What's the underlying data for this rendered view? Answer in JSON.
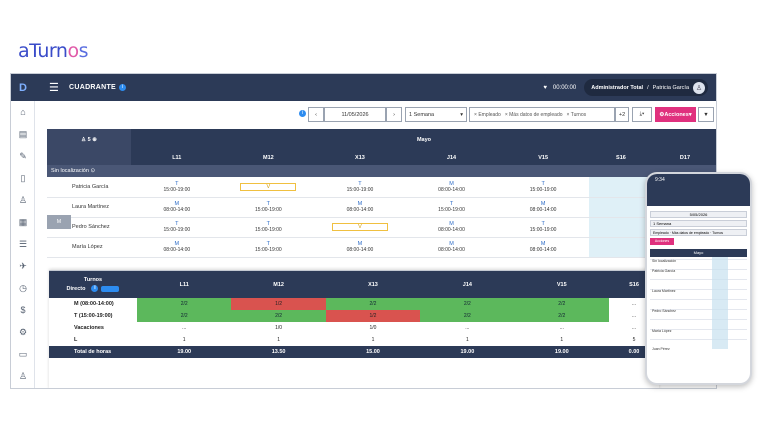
{
  "logo": {
    "text_a": "aTurn",
    "text_o": "o",
    "text_s": "s"
  },
  "topbar": {
    "title": "CUADRANTE",
    "timer": "00:00:00",
    "user_role": "Administrador Total",
    "user_name": "Patricia García"
  },
  "controls": {
    "date": "11/05/2026",
    "range": "1 Semana",
    "filter_chips": [
      "Empleado",
      "Más datos de empleado",
      "Turnos"
    ],
    "more_filters": "+2",
    "actions_label": "Acciones"
  },
  "grid": {
    "counter": "5",
    "month": "Mayo",
    "days": [
      "L11",
      "M12",
      "X13",
      "J14",
      "V15",
      "S16",
      "D17"
    ],
    "location_label": "Sin localización",
    "employees": [
      {
        "name": "Patricia García",
        "shifts": [
          {
            "c": "T",
            "h": "15:00-19:00"
          },
          {
            "c": "V",
            "h": ""
          },
          {
            "c": "T",
            "h": "15:00-19:00"
          },
          {
            "c": "M",
            "h": "08:00-14:00"
          },
          {
            "c": "T",
            "h": "15:00-19:00"
          }
        ]
      },
      {
        "name": "Laura Martínez",
        "shifts": [
          {
            "c": "M",
            "h": "08:00-14:00"
          },
          {
            "c": "T",
            "h": "15:00-19:00"
          },
          {
            "c": "M",
            "h": "08:00-14:00"
          },
          {
            "c": "T",
            "h": "15:00-19:00"
          },
          {
            "c": "M",
            "h": "08:00-14:00"
          }
        ]
      },
      {
        "name": "Pedro Sánchez",
        "shifts": [
          {
            "c": "T",
            "h": "15:00-19:00"
          },
          {
            "c": "T",
            "h": "15:00-19:00"
          },
          {
            "c": "V",
            "h": ""
          },
          {
            "c": "M",
            "h": "08:00-14:00"
          },
          {
            "c": "T",
            "h": "15:00-19:00"
          }
        ]
      },
      {
        "name": "María López",
        "shifts": [
          {
            "c": "M",
            "h": "08:00-14:00"
          },
          {
            "c": "T",
            "h": "15:00-19:00"
          },
          {
            "c": "M",
            "h": "08:00-14:00"
          },
          {
            "c": "M",
            "h": "08:00-14:00"
          },
          {
            "c": "M",
            "h": "08:00-14:00"
          }
        ]
      }
    ],
    "side_marker": "M"
  },
  "summary": {
    "header_label": "Turnos",
    "subheader_label": "Directo",
    "days": [
      "L11",
      "M12",
      "X13",
      "J14",
      "V15",
      "S16"
    ],
    "rows": [
      {
        "label": "M (08:00-14:00)",
        "values": [
          "2/2",
          "1/2",
          "2/2",
          "2/2",
          "2/2",
          "..."
        ],
        "status": [
          "g",
          "r",
          "g",
          "g",
          "g",
          ""
        ]
      },
      {
        "label": "T (15:00-19:00)",
        "values": [
          "2/2",
          "2/2",
          "1/2",
          "2/2",
          "2/2",
          "..."
        ],
        "status": [
          "g",
          "g",
          "r",
          "g",
          "g",
          ""
        ]
      },
      {
        "label": "Vacaciones",
        "values": [
          "...",
          "1/0",
          "1/0",
          "...",
          "...",
          "..."
        ],
        "status": [
          "",
          "",
          "",
          "",
          "",
          ""
        ]
      },
      {
        "label": "L",
        "values": [
          "1",
          "1",
          "1",
          "1",
          "1",
          "5"
        ],
        "status": [
          "",
          "",
          "",
          "",
          "",
          ""
        ]
      }
    ],
    "total_label": "Total de horas",
    "totals": [
      "19.00",
      "13.50",
      "15.00",
      "19.00",
      "19.00",
      "0.00"
    ]
  },
  "phone": {
    "time": "9:34",
    "date": "5/05/2026",
    "range": "1 Semana",
    "chips": "Empleado · Más datos de empleado · Turnos",
    "actions": "Acciones",
    "month": "Mayo",
    "location": "Sin localización",
    "days": [
      "L11",
      "M12",
      "X13",
      "J14",
      "V15",
      "S16",
      "D17"
    ],
    "employees": [
      "Patricia García",
      "Laura Martínez",
      "Pedro Sánchez",
      "María López",
      "Juan Pérez"
    ]
  }
}
